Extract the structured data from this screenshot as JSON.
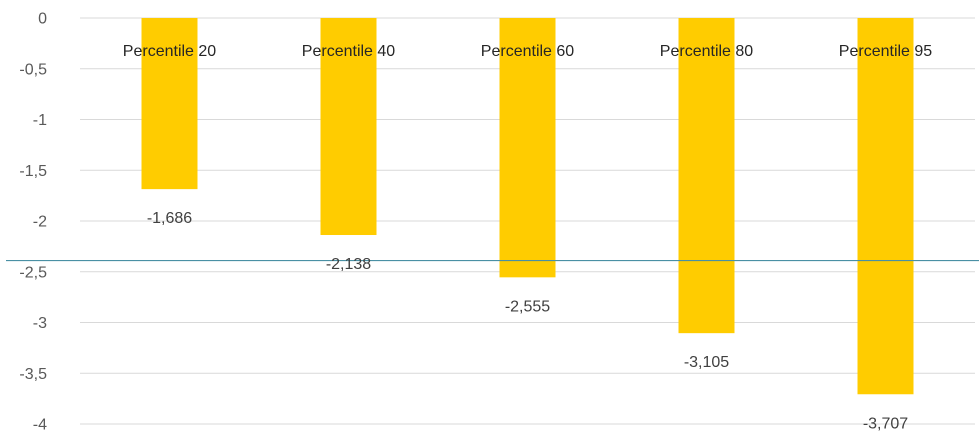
{
  "chart_data": {
    "type": "bar",
    "orientation": "vertical",
    "title": "",
    "xlabel": "",
    "ylabel": "",
    "categories": [
      "Percentile 20",
      "Percentile 40",
      "Percentile 60",
      "Percentile 80",
      "Percentile 95"
    ],
    "series": [
      {
        "values": [
          -1.686,
          -2.138,
          -2.555,
          -3.105,
          -3.707
        ]
      }
    ],
    "data_labels": [
      "-1,686",
      "-2,138",
      "-2,555",
      "-3,105",
      "-3,707"
    ],
    "ylim": [
      -4,
      0
    ],
    "yticks": [
      0,
      -0.5,
      -1,
      -1.5,
      -2,
      -2.5,
      -3,
      -3.5,
      -4
    ],
    "ytick_labels": [
      "0",
      "-0,5",
      "-1",
      "-1,5",
      "-2",
      "-2,5",
      "-3",
      "-3,5",
      "-4"
    ],
    "reference_line": -2.39,
    "grid": true,
    "legend": "none",
    "colors": {
      "bar": "#FFCC00",
      "grid": "#D9D9D9",
      "reference_line": "#4A90A4"
    }
  }
}
